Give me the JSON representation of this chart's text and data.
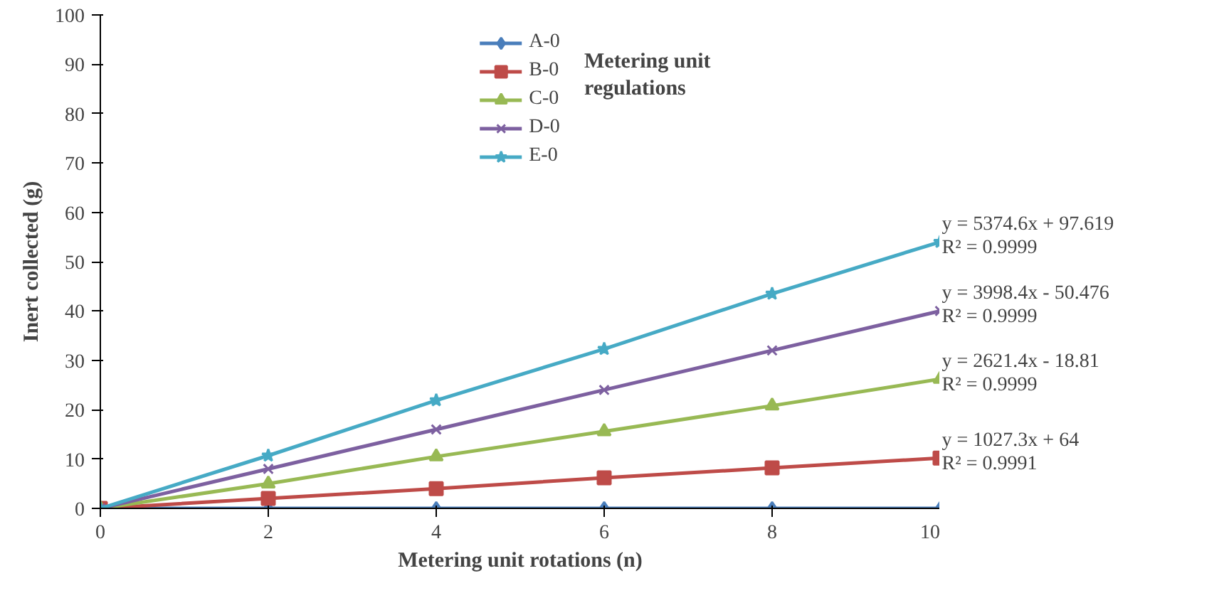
{
  "chart_data": {
    "type": "line",
    "xlabel": "Metering unit rotations (n)",
    "ylabel": "Inert collected (g)",
    "x": [
      0,
      2,
      4,
      6,
      8,
      10
    ],
    "series": [
      {
        "name": "A-0",
        "color": "#4a7ebb",
        "marker": "diamond",
        "values": [
          0,
          0,
          0,
          0,
          0,
          0
        ]
      },
      {
        "name": "B-0",
        "color": "#be4b48",
        "marker": "square",
        "values": [
          0,
          2,
          4,
          6.2,
          8.2,
          10.2
        ]
      },
      {
        "name": "C-0",
        "color": "#98b954",
        "marker": "triangle",
        "values": [
          0,
          5,
          10.5,
          15.6,
          20.8,
          26.2
        ]
      },
      {
        "name": "D-0",
        "color": "#7d60a0",
        "marker": "cross",
        "values": [
          0,
          8,
          16,
          24,
          32,
          40
        ]
      },
      {
        "name": "E-0",
        "color": "#46aac5",
        "marker": "star",
        "values": [
          0,
          10.7,
          21.9,
          32.3,
          43.5,
          54
        ]
      }
    ],
    "xlim": [
      0,
      10
    ],
    "xticks": [
      0,
      2,
      4,
      6,
      8,
      10
    ],
    "ylim": [
      0,
      100
    ],
    "yticks": [
      0,
      10,
      20,
      30,
      40,
      50,
      60,
      70,
      80,
      90,
      100
    ],
    "grid": false,
    "legend": "top",
    "line_style": "solid",
    "annotations": [
      "Metering unit\nregulations",
      "y = 5374.6x + 97.619\nR² = 0.9999",
      "y = 3998.4x - 50.476\nR² = 0.9999",
      "y = 2621.4x - 18.81\nR² = 0.9999",
      "y = 1027.3x + 64\nR² = 0.9991"
    ]
  }
}
